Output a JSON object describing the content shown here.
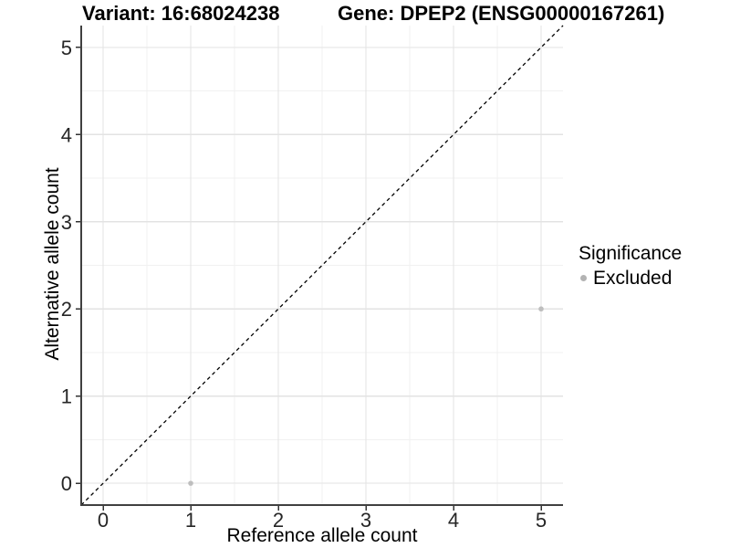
{
  "colors": {
    "background": "#ffffff",
    "grid_major": "#e3e3e3",
    "grid_minor": "#f1f1f1",
    "axis_line": "#404040",
    "tick_mark": "#333333",
    "tick_text": "#262626",
    "title_text": "#000000",
    "point": "#bebebe",
    "legend_dot": "#b3b3b3",
    "reference_line": "#000000"
  },
  "chart_data": {
    "type": "scatter",
    "title_left": "Variant: 16:68024238",
    "title_right": "Gene: DPEP2 (ENSG00000167261)",
    "xlabel": "Reference allele count",
    "ylabel": "Alternative allele count",
    "xlim": [
      -0.25,
      5.25
    ],
    "ylim": [
      -0.25,
      5.25
    ],
    "x_ticks": [
      0,
      1,
      2,
      3,
      4,
      5
    ],
    "y_ticks": [
      0,
      1,
      2,
      3,
      4,
      5
    ],
    "x_minor_ticks": [
      0.5,
      1.5,
      2.5,
      3.5,
      4.5
    ],
    "y_minor_ticks": [
      0.5,
      1.5,
      2.5,
      3.5,
      4.5
    ],
    "grid": "major+minor",
    "reference_line": {
      "slope": 1,
      "intercept": 0,
      "style": "dashed"
    },
    "series": [
      {
        "name": "Excluded",
        "points": [
          {
            "x": 1,
            "y": 0
          },
          {
            "x": 5,
            "y": 2
          }
        ]
      }
    ],
    "legend": {
      "position": "right",
      "title": "Significance",
      "entries": [
        {
          "label": "Excluded"
        }
      ]
    }
  }
}
